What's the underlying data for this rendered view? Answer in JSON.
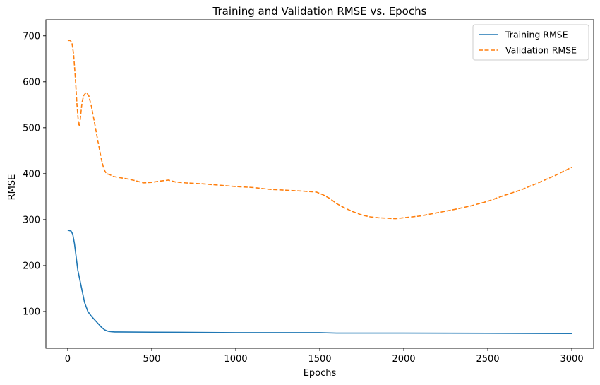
{
  "chart_data": {
    "type": "line",
    "title": "Training and Validation RMSE vs. Epochs",
    "xlabel": "Epochs",
    "ylabel": "RMSE",
    "xlim": [
      -130,
      3130
    ],
    "ylim": [
      20,
      735
    ],
    "xticks": [
      0,
      500,
      1000,
      1500,
      2000,
      2500,
      3000
    ],
    "yticks": [
      100,
      200,
      300,
      400,
      500,
      600,
      700
    ],
    "grid": false,
    "legend_position": "top-right",
    "series": [
      {
        "name": "Training RMSE",
        "color": "#1f77b4",
        "style": "solid",
        "x": [
          0,
          20,
          30,
          40,
          60,
          80,
          100,
          120,
          140,
          160,
          180,
          200,
          220,
          240,
          260,
          280,
          300,
          500,
          1000,
          1500,
          1600,
          2000,
          2500,
          3000
        ],
        "y": [
          277,
          275,
          268,
          248,
          190,
          155,
          120,
          100,
          90,
          82,
          74,
          66,
          60,
          57,
          56,
          55.5,
          55.5,
          55,
          54,
          54,
          53,
          53,
          52.5,
          52
        ]
      },
      {
        "name": "Validation RMSE",
        "color": "#ff7f0e",
        "style": "dashed",
        "x": [
          0,
          15,
          25,
          35,
          45,
          55,
          65,
          70,
          75,
          85,
          95,
          110,
          125,
          140,
          160,
          180,
          200,
          215,
          230,
          250,
          270,
          300,
          350,
          400,
          450,
          500,
          550,
          600,
          640,
          700,
          800,
          1000,
          1100,
          1200,
          1300,
          1400,
          1480,
          1520,
          1560,
          1600,
          1650,
          1700,
          1750,
          1800,
          1850,
          1900,
          1950,
          2000,
          2100,
          2200,
          2300,
          2400,
          2500,
          2600,
          2700,
          2800,
          2900,
          3000
        ],
        "y": [
          690,
          690,
          685,
          660,
          610,
          550,
          505,
          503,
          520,
          555,
          570,
          577,
          570,
          548,
          510,
          470,
          432,
          410,
          400,
          398,
          394,
          392,
          389,
          385,
          380,
          381,
          384,
          386,
          382,
          380,
          378,
          372,
          370,
          366,
          364,
          362,
          360,
          354,
          346,
          335,
          325,
          317,
          310,
          306,
          304,
          303,
          302,
          304,
          308,
          315,
          322,
          330,
          340,
          353,
          365,
          380,
          396,
          414
        ]
      }
    ]
  }
}
